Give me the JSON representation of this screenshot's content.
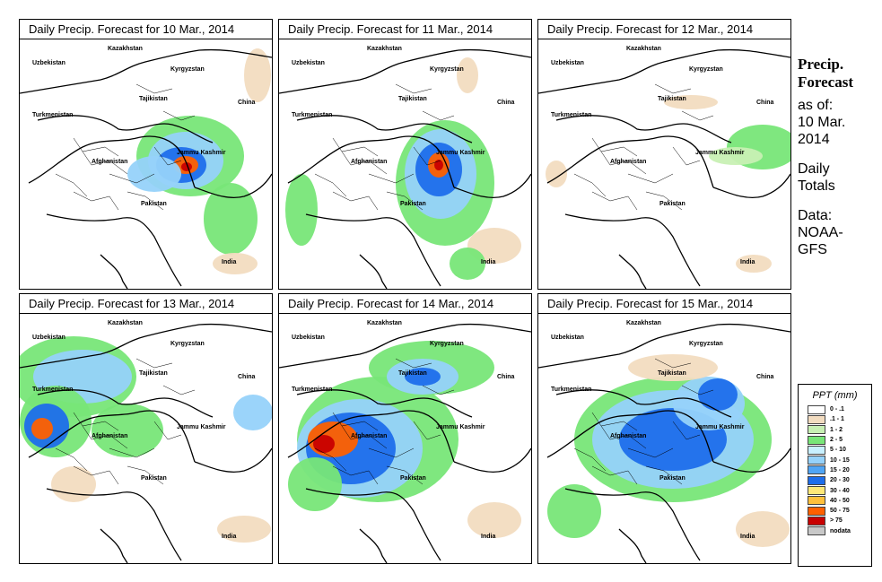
{
  "panels": [
    {
      "title": "Daily Precip. Forecast for  10 Mar., 2014",
      "pattern": "p10"
    },
    {
      "title": "Daily Precip. Forecast for  11 Mar., 2014",
      "pattern": "p11"
    },
    {
      "title": "Daily Precip. Forecast for  12 Mar., 2014",
      "pattern": "p12"
    },
    {
      "title": "Daily Precip. Forecast for  13 Mar., 2014",
      "pattern": "p13"
    },
    {
      "title": "Daily Precip. Forecast for  14 Mar., 2014",
      "pattern": "p14"
    },
    {
      "title": "Daily Precip. Forecast for  15 Mar., 2014",
      "pattern": "p15"
    }
  ],
  "map_labels": {
    "uzbekistan": "Uzbekistan",
    "kazakhstan": "Kazakhstan",
    "kyrgyzstan": "Kyrgyzstan",
    "tajikistan": "Tajikistan",
    "china": "China",
    "turkmenistan": "Turkmenistan",
    "afghanistan": "Afghanistan",
    "jammu_kashmir": "Jammu Kashmir",
    "pakistan": "Pakistan",
    "india": "India"
  },
  "side": {
    "title_line1": "Precip.",
    "title_line2": "Forecast",
    "asof_line1": "as of:",
    "asof_line2": "10 Mar.",
    "asof_line3": "2014",
    "totals_line1": "Daily",
    "totals_line2": "Totals",
    "data_line1": "Data:",
    "data_line2": "NOAA-",
    "data_line3": "GFS"
  },
  "legend": {
    "title": "PPT (mm)",
    "items": [
      {
        "label": "0 - .1",
        "color": "#ffffff"
      },
      {
        "label": ".1 - 1",
        "color": "#f2dcc0"
      },
      {
        "label": "1 - 2",
        "color": "#c8f0b4"
      },
      {
        "label": "2 - 5",
        "color": "#78e678"
      },
      {
        "label": "5 - 10",
        "color": "#c8f0ff"
      },
      {
        "label": "10 - 15",
        "color": "#96d2fa"
      },
      {
        "label": "15 - 20",
        "color": "#50a5f5"
      },
      {
        "label": "20 - 30",
        "color": "#1e6eeb"
      },
      {
        "label": "30 - 40",
        "color": "#ffe878"
      },
      {
        "label": "40 - 50",
        "color": "#ffc03c"
      },
      {
        "label": "50 - 75",
        "color": "#ff6000"
      },
      {
        "label": "> 75",
        "color": "#c80000"
      },
      {
        "label": "nodata",
        "color": "#c8c8c8"
      }
    ]
  }
}
